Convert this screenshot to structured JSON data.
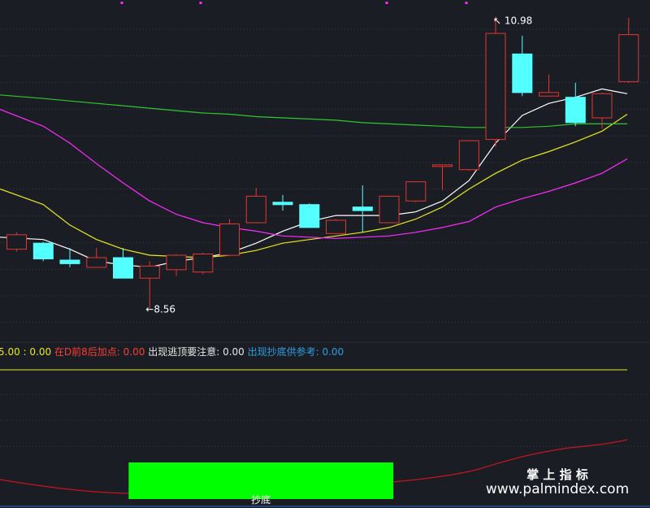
{
  "colors": {
    "background": "#1b1d24",
    "grid": "#3a3e48",
    "bull": "#e3362f",
    "bear": "#54ffff",
    "ma_fast": "#ffffff",
    "ma_mid": "#e8e81a",
    "ma_slow": "#ff2cff",
    "ma_long": "#2ec82e",
    "indicator_line": "#e8e81a",
    "indicator_curve": "#c8141e",
    "signal_block": "#00ff00",
    "legend_default": "#e8e81a",
    "legend_red": "#ff3b30",
    "legend_white": "#e6e6e6",
    "legend_blue": "#2a9fe0",
    "watermark": "#ffffff"
  },
  "chart_data": {
    "type": "candlestick",
    "y_range": [
      8.4,
      11.05
    ],
    "grid": true,
    "annotations": {
      "high_label": "10.98",
      "low_label": "8.56",
      "high_arrow": "↖",
      "low_arrow": "←"
    },
    "candles": [
      {
        "open": 9.05,
        "close": 9.17,
        "high": 9.19,
        "low": 9.03
      },
      {
        "open": 9.1,
        "close": 8.97,
        "high": 9.11,
        "low": 8.95
      },
      {
        "open": 8.96,
        "close": 8.93,
        "high": 9.06,
        "low": 8.9
      },
      {
        "open": 8.9,
        "close": 8.98,
        "high": 9.06,
        "low": 8.9
      },
      {
        "open": 8.98,
        "close": 8.81,
        "high": 9.06,
        "low": 8.81
      },
      {
        "open": 8.81,
        "close": 8.91,
        "high": 8.95,
        "low": 8.56
      },
      {
        "open": 8.88,
        "close": 9.0,
        "high": 9.01,
        "low": 8.83
      },
      {
        "open": 8.86,
        "close": 9.01,
        "high": 9.02,
        "low": 8.84
      },
      {
        "open": 9.0,
        "close": 9.26,
        "high": 9.3,
        "low": 9.0
      },
      {
        "open": 9.27,
        "close": 9.49,
        "high": 9.56,
        "low": 9.27
      },
      {
        "open": 9.44,
        "close": 9.42,
        "high": 9.5,
        "low": 9.37
      },
      {
        "open": 9.42,
        "close": 9.23,
        "high": 9.43,
        "low": 9.23
      },
      {
        "open": 9.18,
        "close": 9.29,
        "high": 9.3,
        "low": 9.18
      },
      {
        "open": 9.4,
        "close": 9.37,
        "high": 9.58,
        "low": 9.19
      },
      {
        "open": 9.27,
        "close": 9.49,
        "high": 9.49,
        "low": 9.27
      },
      {
        "open": 9.45,
        "close": 9.61,
        "high": 9.61,
        "low": 9.44
      },
      {
        "open": 9.74,
        "close": 9.75,
        "high": 9.75,
        "low": 9.54
      },
      {
        "open": 9.71,
        "close": 9.95,
        "high": 9.95,
        "low": 9.7
      },
      {
        "open": 9.96,
        "close": 10.84,
        "high": 10.98,
        "low": 9.9
      },
      {
        "open": 10.67,
        "close": 10.35,
        "high": 10.82,
        "low": 10.32
      },
      {
        "open": 10.32,
        "close": 10.35,
        "high": 10.5,
        "low": 10.32
      },
      {
        "open": 10.31,
        "close": 10.1,
        "high": 10.43,
        "low": 10.07
      },
      {
        "open": 10.14,
        "close": 10.34,
        "high": 10.35,
        "low": 10.05
      },
      {
        "open": 10.44,
        "close": 10.83,
        "high": 10.97,
        "low": 10.43
      }
    ],
    "series": [
      {
        "values": [
          9.15,
          9.13,
          9.05,
          8.95,
          8.92,
          8.9,
          8.95,
          8.98,
          9.02,
          9.1,
          9.2,
          9.28,
          9.33,
          9.33,
          9.33,
          9.36,
          9.45,
          9.62,
          9.93,
          10.16,
          10.26,
          10.31,
          10.38,
          10.34
        ]
      },
      {
        "values": [
          9.55,
          9.42,
          9.25,
          9.13,
          9.05,
          9.0,
          8.99,
          8.98,
          9.0,
          9.04,
          9.1,
          9.13,
          9.16,
          9.19,
          9.23,
          9.3,
          9.4,
          9.55,
          9.68,
          9.79,
          9.86,
          9.94,
          10.03,
          10.17
        ]
      },
      {
        "values": [
          10.21,
          10.07,
          9.93,
          9.76,
          9.6,
          9.45,
          9.34,
          9.27,
          9.23,
          9.2,
          9.16,
          9.15,
          9.14,
          9.15,
          9.16,
          9.19,
          9.23,
          9.28,
          9.4,
          9.47,
          9.53,
          9.6,
          9.68,
          9.8
        ]
      },
      {
        "values": [
          10.33,
          10.3,
          10.28,
          10.26,
          10.24,
          10.22,
          10.2,
          10.18,
          10.17,
          10.15,
          10.14,
          10.13,
          10.12,
          10.1,
          10.09,
          10.08,
          10.07,
          10.06,
          10.06,
          10.06,
          10.07,
          10.09,
          10.09,
          10.09
        ]
      }
    ],
    "indicator": {
      "legend": [
        {
          "text": "5.00 : 0.00",
          "tone": "default"
        },
        {
          "text": "在D前8后加点: 0.00",
          "tone": "red"
        },
        {
          "text": "出现逃顶要注意: 0.00",
          "tone": "white"
        },
        {
          "text": "出现抄底供参考: 0.00",
          "tone": "blue"
        }
      ],
      "line_level": 5.0,
      "signal_label": "抄底",
      "signal_from": 5,
      "signal_to": 14
    }
  },
  "watermark": {
    "title": "掌 上 指 标",
    "url": "www.palmindex.com"
  }
}
